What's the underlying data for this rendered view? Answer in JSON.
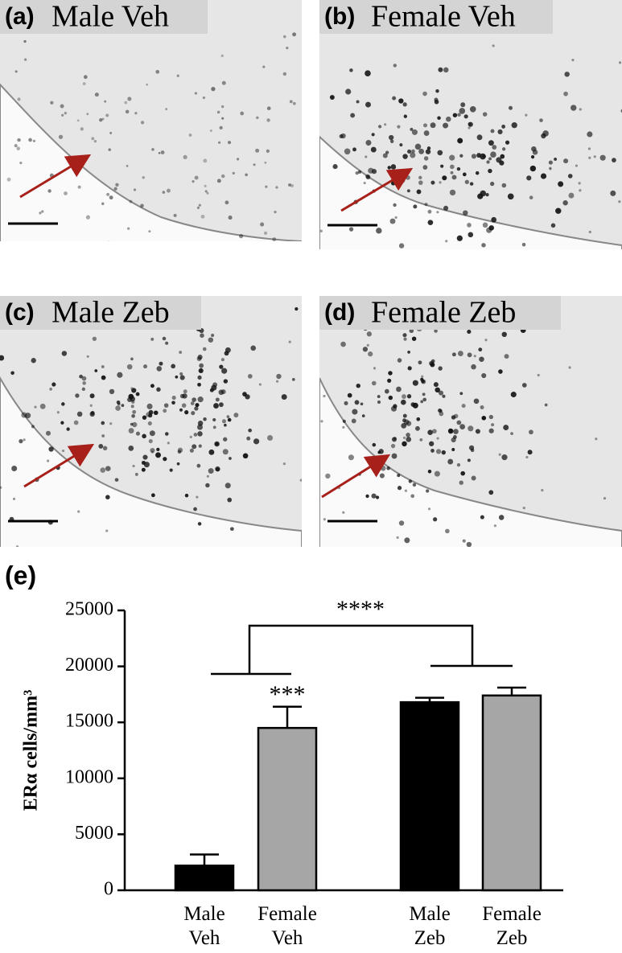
{
  "panels": [
    {
      "letter": "(a)",
      "label": "Male Veh"
    },
    {
      "letter": "(b)",
      "label": "Female Veh"
    },
    {
      "letter": "(c)",
      "label": "Male Zeb"
    },
    {
      "letter": "(d)",
      "label": "Female Zeb"
    }
  ],
  "chart_data": {
    "type": "bar",
    "panel_letter": "(e)",
    "ylabel": "ERα cells/mm³",
    "categories": [
      "Male Veh",
      "Female Veh",
      "Male Zeb",
      "Female Zeb"
    ],
    "values": [
      2200,
      14500,
      16800,
      17400
    ],
    "errors": [
      1000,
      1900,
      400,
      700
    ],
    "colors": [
      "#000000",
      "#a6a6a6",
      "#000000",
      "#a6a6a6"
    ],
    "ylim": [
      0,
      25000
    ],
    "yticks": [
      0,
      5000,
      10000,
      15000,
      20000,
      25000
    ],
    "annotations": [
      "***",
      "****"
    ]
  }
}
